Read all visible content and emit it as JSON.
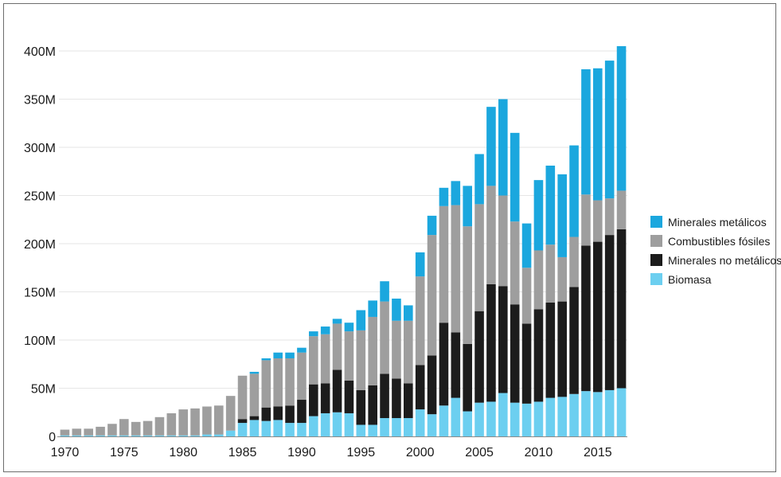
{
  "chart_data": {
    "type": "bar",
    "stacked": true,
    "title": "",
    "xlabel": "",
    "ylabel": "",
    "ylim": [
      0,
      420000000
    ],
    "y_ticks": [
      0,
      50000000,
      100000000,
      150000000,
      200000000,
      250000000,
      300000000,
      350000000,
      400000000
    ],
    "y_tick_labels": [
      "0",
      "50M",
      "100M",
      "150M",
      "200M",
      "250M",
      "300M",
      "350M",
      "400M"
    ],
    "x_ticks": [
      1970,
      1975,
      1980,
      1985,
      1990,
      1995,
      2000,
      2005,
      2010,
      2015
    ],
    "x_tick_labels": [
      "1970",
      "1975",
      "1980",
      "1985",
      "1990",
      "1995",
      "2000",
      "2005",
      "2010",
      "2015"
    ],
    "grid": "horizontal",
    "legend_position": "right",
    "categories": [
      1970,
      1971,
      1972,
      1973,
      1974,
      1975,
      1976,
      1977,
      1978,
      1979,
      1980,
      1981,
      1982,
      1983,
      1984,
      1985,
      1986,
      1987,
      1988,
      1989,
      1990,
      1991,
      1992,
      1993,
      1994,
      1995,
      1996,
      1997,
      1998,
      1999,
      2000,
      2001,
      2002,
      2003,
      2004,
      2005,
      2006,
      2007,
      2008,
      2009,
      2010,
      2011,
      2012,
      2013,
      2014,
      2015,
      2016,
      2017
    ],
    "series": [
      {
        "name": "Biomasa",
        "color": "#6ccff0",
        "values": [
          1000000,
          1000000,
          1000000,
          1000000,
          1000000,
          1000000,
          1000000,
          1000000,
          1000000,
          1000000,
          1000000,
          1000000,
          2000000,
          2000000,
          6000000,
          14000000,
          17000000,
          16000000,
          17000000,
          14000000,
          14000000,
          21000000,
          24000000,
          25000000,
          24000000,
          12000000,
          12000000,
          19000000,
          19000000,
          19000000,
          28000000,
          23000000,
          32000000,
          40000000,
          26000000,
          35000000,
          36000000,
          45000000,
          35000000,
          34000000,
          36000000,
          40000000,
          41000000,
          44000000,
          47000000,
          46000000,
          48000000,
          50000000
        ]
      },
      {
        "name": "Minerales no metálicos",
        "color": "#1c1c1c",
        "values": [
          0,
          0,
          0,
          0,
          0,
          0,
          0,
          0,
          0,
          0,
          0,
          0,
          0,
          0,
          0,
          4000000,
          4000000,
          14000000,
          14000000,
          18000000,
          24000000,
          33000000,
          31000000,
          44000000,
          34000000,
          36000000,
          41000000,
          46000000,
          41000000,
          36000000,
          46000000,
          61000000,
          86000000,
          68000000,
          70000000,
          95000000,
          122000000,
          111000000,
          102000000,
          83000000,
          96000000,
          99000000,
          99000000,
          111000000,
          151000000,
          156000000,
          161000000,
          165000000
        ]
      },
      {
        "name": "Combustibles fósiles",
        "color": "#9e9e9e",
        "values": [
          6000000,
          7000000,
          7000000,
          9000000,
          12000000,
          17000000,
          14000000,
          15000000,
          19000000,
          23000000,
          27000000,
          28000000,
          29000000,
          30000000,
          36000000,
          45000000,
          44000000,
          49000000,
          50000000,
          49000000,
          49000000,
          50000000,
          51000000,
          48000000,
          51000000,
          62000000,
          71000000,
          75000000,
          60000000,
          65000000,
          92000000,
          125000000,
          121000000,
          132000000,
          122000000,
          111000000,
          102000000,
          94000000,
          86000000,
          58000000,
          61000000,
          60000000,
          46000000,
          52000000,
          53000000,
          43000000,
          38000000,
          40000000
        ]
      },
      {
        "name": "Minerales metálicos",
        "color": "#1ba7de",
        "values": [
          0,
          0,
          0,
          0,
          0,
          0,
          0,
          0,
          0,
          0,
          0,
          0,
          0,
          0,
          0,
          0,
          2000000,
          2000000,
          6000000,
          6000000,
          5000000,
          5000000,
          8000000,
          5000000,
          9000000,
          21000000,
          17000000,
          21000000,
          23000000,
          16000000,
          25000000,
          20000000,
          19000000,
          25000000,
          42000000,
          52000000,
          82000000,
          100000000,
          92000000,
          46000000,
          73000000,
          82000000,
          86000000,
          95000000,
          130000000,
          137000000,
          143000000,
          150000000
        ]
      }
    ]
  },
  "legend": {
    "items": [
      {
        "label": "Minerales metálicos",
        "color": "#1ba7de"
      },
      {
        "label": "Combustibles fósiles",
        "color": "#9e9e9e"
      },
      {
        "label": "Minerales no metálicos",
        "color": "#1c1c1c"
      },
      {
        "label": "Biomasa",
        "color": "#6ccff0"
      }
    ]
  }
}
